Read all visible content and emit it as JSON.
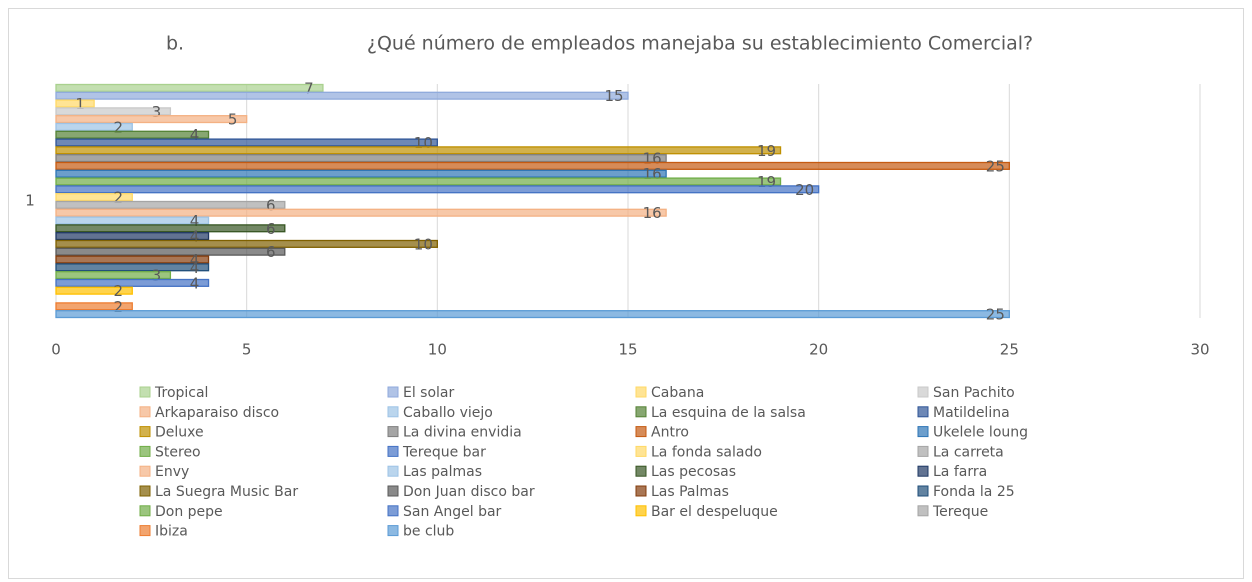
{
  "chart_data": {
    "type": "hbar",
    "label": "b.",
    "title": "¿Qué número de empleados manejaba su establecimiento Comercial?",
    "categories": [
      "1"
    ],
    "xlim": [
      0,
      30
    ],
    "xticks": [
      0,
      5,
      10,
      15,
      20,
      25,
      30
    ],
    "grid": true,
    "series": [
      {
        "name": "Tropical",
        "color": "#a9d18e",
        "values": [
          7
        ]
      },
      {
        "name": "El solar",
        "color": "#8faadc",
        "values": [
          15
        ]
      },
      {
        "name": "Cabana",
        "color": "#ffd966",
        "values": [
          1
        ]
      },
      {
        "name": "San Pachito",
        "color": "#c9c9c9",
        "values": [
          3
        ]
      },
      {
        "name": "Arkaparaiso disco",
        "color": "#f4b183",
        "values": [
          5
        ]
      },
      {
        "name": "Caballo viejo",
        "color": "#9dc3e6",
        "values": [
          2
        ]
      },
      {
        "name": "La esquina de la salsa",
        "color": "#548235",
        "values": [
          4
        ]
      },
      {
        "name": "Matildelina",
        "color": "#2f5597",
        "values": [
          10
        ]
      },
      {
        "name": "Deluxe",
        "color": "#bf9000",
        "values": [
          19
        ]
      },
      {
        "name": "La divina envidia",
        "color": "#7f7f7f",
        "values": [
          16
        ]
      },
      {
        "name": "Antro",
        "color": "#c55a11",
        "values": [
          25
        ]
      },
      {
        "name": "Ukelele loung",
        "color": "#2e75b6",
        "values": [
          16
        ]
      },
      {
        "name": "Stereo",
        "color": "#70ad47",
        "values": [
          19
        ]
      },
      {
        "name": "Tereque bar",
        "color": "#4472c4",
        "values": [
          20
        ]
      },
      {
        "name": "La fonda salado",
        "color": "#ffd966",
        "values": [
          2
        ]
      },
      {
        "name": "La carreta",
        "color": "#a5a5a5",
        "values": [
          6
        ]
      },
      {
        "name": "Envy",
        "color": "#f4b183",
        "values": [
          16
        ]
      },
      {
        "name": "Las palmas",
        "color": "#9dc3e6",
        "values": [
          4
        ]
      },
      {
        "name": "Las pecosas",
        "color": "#375623",
        "values": [
          6
        ]
      },
      {
        "name": "La farra",
        "color": "#1f3864",
        "values": [
          4
        ]
      },
      {
        "name": "La Suegra Music Bar",
        "color": "#7f6000",
        "values": [
          10
        ]
      },
      {
        "name": "Don Juan disco bar",
        "color": "#595959",
        "values": [
          6
        ]
      },
      {
        "name": "Las Palmas",
        "color": "#843c0c",
        "values": [
          4
        ]
      },
      {
        "name": "Fonda la 25",
        "color": "#1f4e79",
        "values": [
          4
        ]
      },
      {
        "name": "Don pepe",
        "color": "#70ad47",
        "values": [
          3
        ]
      },
      {
        "name": "San Angel bar",
        "color": "#4472c4",
        "values": [
          4
        ]
      },
      {
        "name": "Bar el despeluque",
        "color": "#ffc000",
        "values": [
          2
        ]
      },
      {
        "name": "Tereque",
        "color": "#a5a5a5",
        "values": [
          null
        ]
      },
      {
        "name": "Ibiza",
        "color": "#ed7d31",
        "values": [
          2
        ]
      },
      {
        "name": "be club",
        "color": "#5b9bd5",
        "values": [
          25
        ]
      }
    ]
  }
}
